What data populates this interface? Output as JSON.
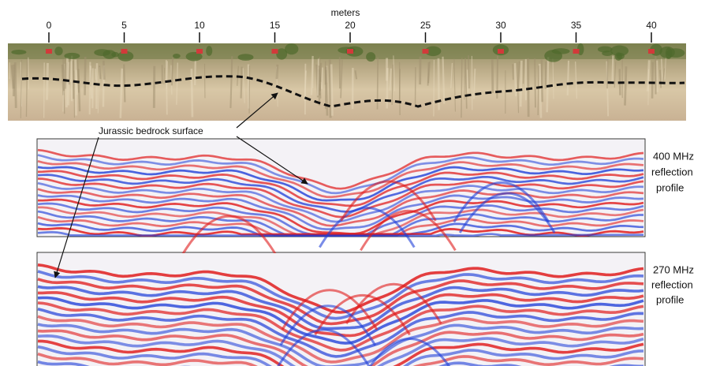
{
  "scale": {
    "label": "meters",
    "ticks": [
      0,
      5,
      10,
      15,
      20,
      25,
      30,
      35,
      40
    ]
  },
  "annotation": "Jurassic bedrock surface",
  "profiles": [
    {
      "lines": [
        "400 MHz",
        "reflection",
        "profile"
      ]
    },
    {
      "lines": [
        "270 MHz",
        "reflection",
        "profile"
      ]
    }
  ]
}
